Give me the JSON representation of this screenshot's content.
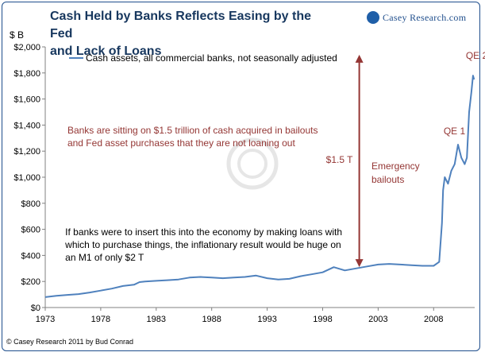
{
  "header": {
    "title_line1": "Cash Held by Banks Reflects Easing by the Fed",
    "title_line2": "and Lack of Loans",
    "logo_text": "Casey Research.com"
  },
  "footer": {
    "copyright": "© Casey Research 2011 by Bud Conrad"
  },
  "colors": {
    "series": "#4f81bd",
    "annotation": "#943634",
    "title": "#17375e"
  },
  "chart_data": {
    "type": "line",
    "ylabel": "$ B",
    "ylim": [
      0,
      2000
    ],
    "xlim": [
      1973,
      2011.7
    ],
    "y_ticks": [
      "$0",
      "$200",
      "$400",
      "$600",
      "$800",
      "$1,000",
      "$1,200",
      "$1,400",
      "$1,600",
      "$1,800",
      "$2,000"
    ],
    "y_tick_values": [
      0,
      200,
      400,
      600,
      800,
      1000,
      1200,
      1400,
      1600,
      1800,
      2000
    ],
    "x_ticks": [
      "1973",
      "1978",
      "1983",
      "1988",
      "1993",
      "1998",
      "2003",
      "2008"
    ],
    "x_tick_values": [
      1973,
      1978,
      1983,
      1988,
      1993,
      1998,
      2003,
      2008
    ],
    "grid": false,
    "legend_position": "top-left",
    "series": [
      {
        "name": "Cash assets, all commercial banks, not seasonally adjusted",
        "x": [
          1973,
          1974,
          1975,
          1976,
          1977,
          1978,
          1979,
          1980,
          1981,
          1981.5,
          1982,
          1983,
          1984,
          1985,
          1986,
          1987,
          1988,
          1989,
          1990,
          1991,
          1992,
          1993,
          1994,
          1995,
          1996,
          1997,
          1998,
          1999,
          2000,
          2001,
          2002,
          2003,
          2004,
          2005,
          2006,
          2007,
          2008,
          2008.5,
          2008.75,
          2008.85,
          2009.0,
          2009.3,
          2009.6,
          2009.9,
          2010.2,
          2010.5,
          2010.8,
          2011.0,
          2011.2,
          2011.4,
          2011.55,
          2011.65
        ],
        "y": [
          80,
          90,
          97,
          103,
          115,
          130,
          145,
          165,
          175,
          195,
          200,
          205,
          210,
          215,
          230,
          235,
          230,
          225,
          230,
          235,
          245,
          225,
          215,
          220,
          240,
          255,
          270,
          310,
          285,
          300,
          315,
          330,
          335,
          330,
          325,
          320,
          320,
          350,
          650,
          900,
          1000,
          950,
          1050,
          1100,
          1250,
          1150,
          1100,
          1150,
          1500,
          1650,
          1780,
          1750
        ]
      }
    ],
    "annotations": [
      {
        "text": "QE 2",
        "x": 2010.9,
        "y": 1910
      },
      {
        "text": "QE 1",
        "x": 2008.9,
        "y": 1330
      },
      {
        "text_lines": [
          "Emergency",
          "bailouts"
        ],
        "x": 2002.4,
        "y": 1060
      },
      {
        "text": "$1.5 T",
        "x": 1998.3,
        "y": 1110
      },
      {
        "text_lines": [
          "Banks are sitting on $1.5 trillion of cash acquired in bailouts",
          "and Fed asset purchases that they are not loaning out"
        ],
        "x": 1975.0,
        "y": 1335
      },
      {
        "text_lines": [
          "If banks were to insert this into the economy by making loans with",
          "which to purchase things, the inflationary result would be huge on",
          "an M1 of only $2 T"
        ],
        "x": 1974.8,
        "y": 555
      }
    ],
    "arrow": {
      "x": 2001.3,
      "y_from": 310,
      "y_to": 1940
    }
  }
}
